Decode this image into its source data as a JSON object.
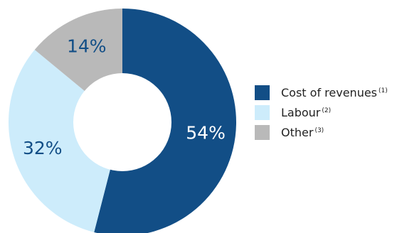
{
  "chart_data": {
    "type": "pie",
    "title": "",
    "legend_position": "right",
    "slices": [
      {
        "name": "Cost of revenues",
        "note": "(1)",
        "value": 54,
        "label": "54%",
        "color": "#124e86",
        "label_color": "#ffffff"
      },
      {
        "name": "Labour",
        "note": "(2)",
        "value": 32,
        "label": "32%",
        "color": "#cdecfb",
        "label_color": "#124e86"
      },
      {
        "name": "Other",
        "note": "(3)",
        "value": 14,
        "label": "14%",
        "color": "#b9b9b9",
        "label_color": "#124e86"
      }
    ]
  }
}
